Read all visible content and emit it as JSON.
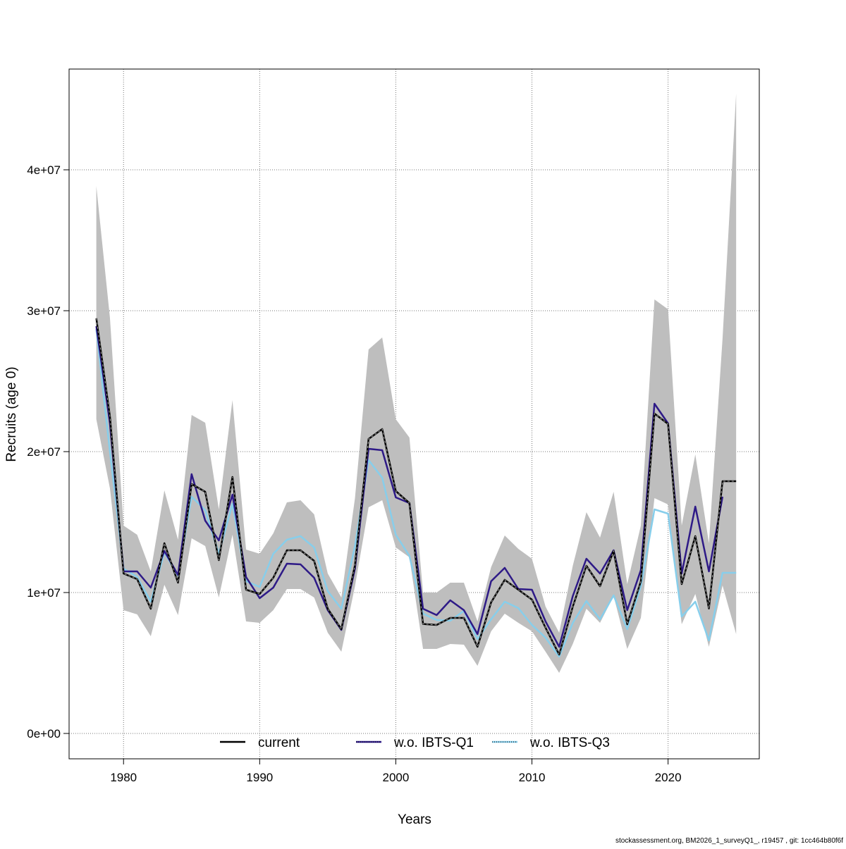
{
  "chart_data": {
    "type": "line",
    "title": "",
    "xlabel": "Years",
    "ylabel": "Recruits (age 0)",
    "xlim": [
      1976,
      2026.7
    ],
    "ylim": [
      -1800000,
      47150000
    ],
    "grid": true,
    "x_ticks": [
      1980,
      1990,
      2000,
      2010,
      2020
    ],
    "x_tick_labels": [
      "1980",
      "1990",
      "2000",
      "2010",
      "2020"
    ],
    "y_ticks": [
      0,
      10000000,
      20000000,
      30000000,
      40000000
    ],
    "y_tick_labels": [
      "0e+00",
      "1e+07",
      "2e+07",
      "3e+07",
      "4e+07"
    ],
    "legend_position": "bottom",
    "x": [
      1978,
      1979,
      1980,
      1981,
      1982,
      1983,
      1984,
      1985,
      1986,
      1987,
      1988,
      1989,
      1990,
      1991,
      1992,
      1993,
      1994,
      1995,
      1996,
      1997,
      1998,
      1999,
      2000,
      2001,
      2002,
      2003,
      2004,
      2005,
      2006,
      2007,
      2008,
      2009,
      2010,
      2011,
      2012,
      2013,
      2014,
      2015,
      2016,
      2017,
      2018,
      2019,
      2020,
      2021,
      2022,
      2023,
      2024,
      2025
    ],
    "confidence_band": {
      "series": "current",
      "upper": [
        38.85,
        29.5,
        14.75,
        14.1,
        11.5,
        17.25,
        13.75,
        22.6,
        22.05,
        15.9,
        23.65,
        13.05,
        12.75,
        14.2,
        16.4,
        16.55,
        15.55,
        11.35,
        9.65,
        16.7,
        27.25,
        28.1,
        22.3,
        21.0,
        10.0,
        10.0,
        10.7,
        10.7,
        7.95,
        11.8,
        14.05,
        13.1,
        12.4,
        9.0,
        7.15,
        11.9,
        15.7,
        13.9,
        17.15,
        10.6,
        14.75,
        30.8,
        30.1,
        14.75,
        19.8,
        13.5,
        28.0,
        45.4
      ],
      "lower": [
        22.3,
        17.4,
        8.75,
        8.45,
        6.9,
        10.55,
        8.4,
        13.85,
        13.3,
        9.65,
        14.1,
        7.95,
        7.85,
        8.75,
        10.25,
        10.25,
        9.65,
        7.15,
        5.8,
        10.45,
        16.05,
        16.55,
        13.2,
        12.5,
        6.0,
        6.0,
        6.35,
        6.3,
        4.8,
        7.25,
        8.5,
        7.85,
        7.25,
        5.8,
        4.3,
        6.35,
        8.85,
        7.85,
        9.75,
        6.0,
        8.2,
        16.7,
        16.25,
        7.75,
        9.9,
        6.15,
        10.5,
        7.05
      ],
      "unit_multiplier": 1000000,
      "color": "#BEBEBE"
    },
    "unit_multiplier": 1000000,
    "series": [
      {
        "name": "current",
        "color": "#000000",
        "values": [
          29.46,
          22.5,
          11.35,
          10.95,
          8.85,
          13.5,
          10.7,
          17.7,
          17.15,
          12.3,
          18.2,
          10.2,
          9.9,
          11.05,
          13.0,
          13.0,
          12.25,
          8.85,
          7.4,
          11.95,
          20.9,
          21.6,
          17.2,
          16.35,
          7.77,
          7.7,
          8.2,
          8.2,
          6.15,
          9.3,
          10.9,
          10.2,
          9.5,
          7.5,
          5.6,
          9.0,
          11.9,
          10.45,
          12.95,
          7.75,
          10.8,
          22.7,
          21.96,
          10.6,
          14.0,
          8.87,
          17.9,
          17.9
        ]
      },
      {
        "name": "w.o. IBTS-Q1",
        "color": "#2E1A87",
        "values": [
          28.9,
          22.0,
          11.5,
          11.5,
          10.35,
          12.95,
          11.25,
          18.4,
          15.1,
          13.7,
          16.95,
          11.1,
          9.6,
          10.35,
          12.05,
          12.0,
          11.05,
          8.75,
          7.35,
          11.7,
          20.2,
          20.1,
          16.75,
          16.35,
          8.85,
          8.4,
          9.45,
          8.75,
          7.05,
          10.8,
          11.75,
          10.25,
          10.2,
          7.95,
          6.15,
          9.75,
          12.4,
          11.35,
          13.0,
          8.75,
          11.6,
          23.4,
          22.0,
          11.35,
          16.1,
          11.5,
          16.8,
          null
        ]
      },
      {
        "name": "w.o. IBTS-Q3",
        "color": "#87CEEB",
        "values": [
          28.7,
          20.0,
          11.7,
          11.1,
          9.35,
          12.85,
          11.2,
          16.8,
          15.85,
          12.75,
          16.3,
          10.8,
          10.4,
          12.75,
          13.75,
          14.0,
          13.2,
          10.1,
          8.85,
          13.3,
          19.4,
          18.15,
          14.1,
          12.6,
          8.5,
          8.05,
          8.0,
          8.7,
          6.7,
          8.1,
          9.35,
          8.9,
          7.7,
          6.8,
          5.45,
          7.85,
          9.4,
          8.1,
          9.8,
          7.4,
          10.45,
          15.9,
          15.6,
          8.3,
          9.35,
          6.6,
          11.4,
          11.4
        ]
      }
    ]
  },
  "footer": "stockassessment.org, BM2026_1_surveyQ1_, r19457 , git: 1cc464b80f6f"
}
